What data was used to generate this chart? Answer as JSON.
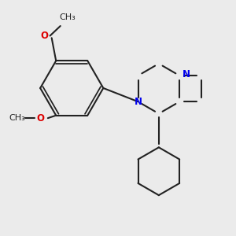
{
  "bg_color": "#ebebeb",
  "bond_color": "#222222",
  "bond_width": 1.5,
  "N_color": "#0000ee",
  "O_color": "#dd0000",
  "C_color": "#222222",
  "font_size": 8.5,
  "figsize": [
    3.0,
    3.0
  ],
  "dpi": 100,
  "xlim": [
    -0.3,
    4.0
  ],
  "ylim": [
    -1.2,
    2.8
  ]
}
